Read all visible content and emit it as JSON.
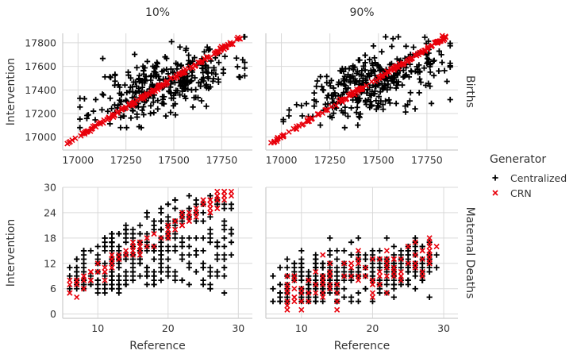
{
  "chart_data": {
    "type": "scatter",
    "col_titles": [
      "10%",
      "90%"
    ],
    "row_titles": [
      "Births",
      "Maternal Deaths"
    ],
    "ylabel": "Intervention",
    "xlabel": "Reference",
    "legend": {
      "title": "Generator",
      "placement": "right",
      "entries": [
        {
          "label": "Centralized",
          "marker": "+",
          "color": "#000000"
        },
        {
          "label": "CRN",
          "marker": "x",
          "color": "#e8000b"
        }
      ]
    },
    "grid": true,
    "rows": [
      {
        "name": "Births",
        "xlim": [
          16920,
          17910
        ],
        "ylim": [
          16890,
          17880
        ],
        "xticks": [
          17000,
          17250,
          17500,
          17750
        ],
        "yticks": [
          17000,
          17200,
          17400,
          17600,
          17800
        ],
        "series": [
          {
            "name": "Centralized",
            "type": "cloud",
            "count": 330,
            "center": [
              17450,
              17450
            ],
            "sx": 180,
            "sy": 150,
            "corr": 0.55,
            "seed_10": 11,
            "seed_90": 29
          },
          {
            "name": "CRN",
            "type": "diagonal",
            "count": 150,
            "range": [
              16940,
              17850
            ],
            "jitter": 8,
            "seed_10": 5,
            "seed_90": 7
          }
        ]
      },
      {
        "name": "Maternal Deaths",
        "xlim": [
          5,
          32
        ],
        "ylim": [
          -1,
          30
        ],
        "xticks": [
          10,
          20,
          30
        ],
        "yticks": [
          0,
          6,
          12,
          18,
          24,
          30
        ],
        "panels": {
          "10%": {
            "centralized": {
              "xrange": [
                6,
                31
              ],
              "ymin": 5,
              "ymax": 28,
              "count": 320
            },
            "crn": {
              "slope": 1,
              "intercept": 0,
              "xrange": [
                6,
                29
              ],
              "jitter": 1.2,
              "count": 110
            }
          },
          "90%": {
            "centralized": {
              "xrange": [
                6,
                31
              ],
              "center": 7.5,
              "slope": 0.3,
              "spread": 3.5,
              "count": 330
            },
            "crn": {
              "slope": 0.45,
              "intercept": 1,
              "xrange": [
                7,
                29
              ],
              "jitter": 3,
              "count": 110
            }
          }
        }
      }
    ]
  }
}
